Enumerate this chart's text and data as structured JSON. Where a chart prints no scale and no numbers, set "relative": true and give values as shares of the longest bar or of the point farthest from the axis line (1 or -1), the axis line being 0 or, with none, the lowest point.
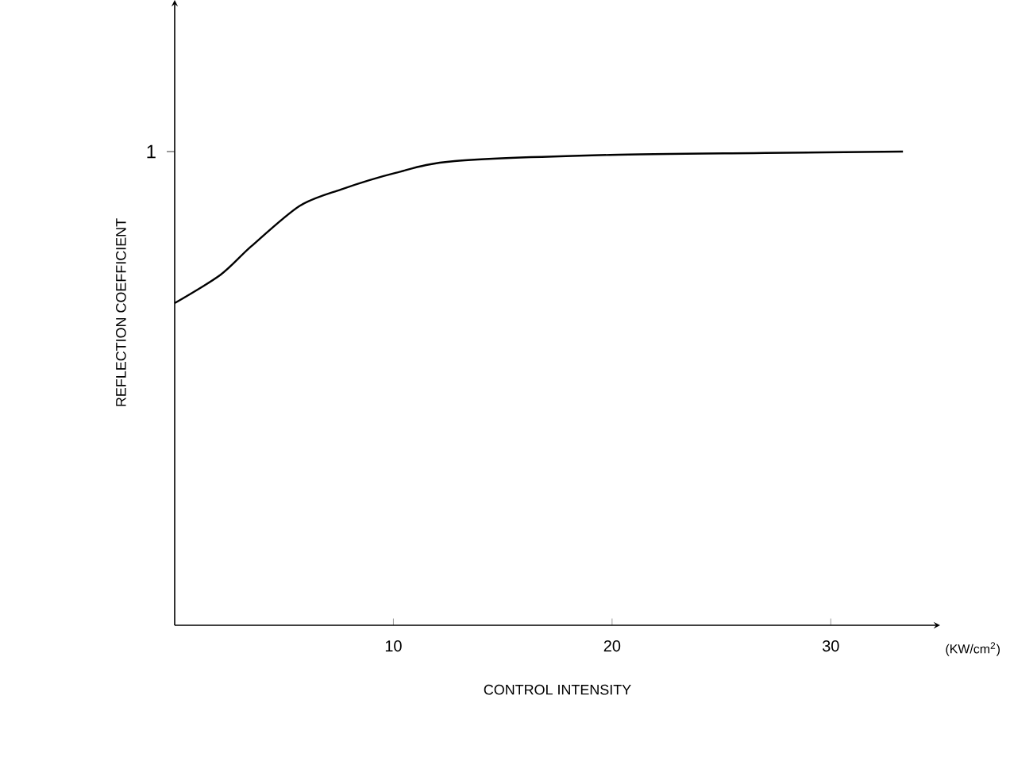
{
  "chart_data": {
    "type": "line",
    "relative": true,
    "xlabel": "CONTROL INTENSITY",
    "ylabel": "REFLECTION COEFFICIENT",
    "annotations": [
      "1",
      "(KW/cm$^{2}$)"
    ],
    "xlim": [
      0,
      35
    ],
    "xticks": [
      10,
      20,
      30
    ],
    "series": [
      {
        "color": "#000000",
        "x": [
          0,
          2.1,
          3.5,
          5.7,
          7.6,
          10.1,
          12.8,
          19.9,
          27,
          33.3
        ],
        "values": [
          0.68,
          0.74,
          0.8,
          0.885,
          0.92,
          0.955,
          0.98,
          0.993,
          0.997,
          1
        ]
      }
    ]
  }
}
